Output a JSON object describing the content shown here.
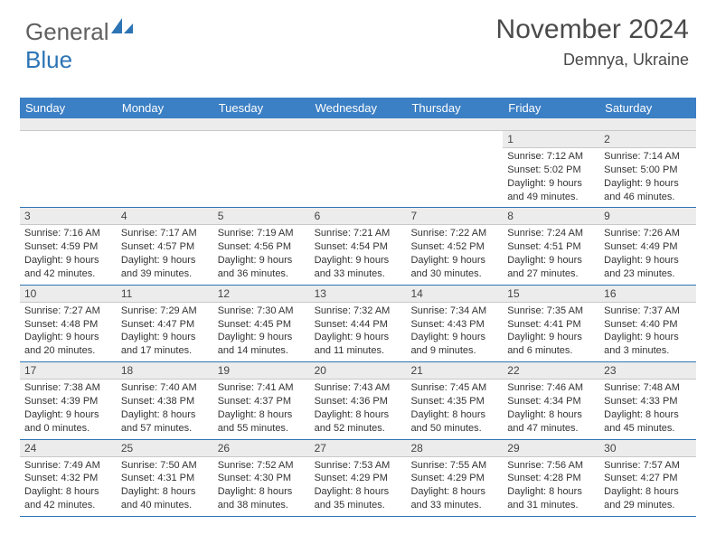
{
  "logo": {
    "general": "General",
    "blue": "Blue"
  },
  "header": {
    "month_title": "November 2024",
    "location": "Demnya, Ukraine"
  },
  "colors": {
    "header_bg": "#3b7fc4",
    "header_text": "#ffffff",
    "day_number_bg": "#ececec",
    "cell_border": "#2d74b5",
    "logo_blue": "#2d74b5",
    "logo_gray": "#606060"
  },
  "weekdays": [
    "Sunday",
    "Monday",
    "Tuesday",
    "Wednesday",
    "Thursday",
    "Friday",
    "Saturday"
  ],
  "weeks": [
    [
      null,
      null,
      null,
      null,
      null,
      {
        "n": "1",
        "sr": "Sunrise: 7:12 AM",
        "ss": "Sunset: 5:02 PM",
        "d1": "Daylight: 9 hours",
        "d2": "and 49 minutes."
      },
      {
        "n": "2",
        "sr": "Sunrise: 7:14 AM",
        "ss": "Sunset: 5:00 PM",
        "d1": "Daylight: 9 hours",
        "d2": "and 46 minutes."
      }
    ],
    [
      {
        "n": "3",
        "sr": "Sunrise: 7:16 AM",
        "ss": "Sunset: 4:59 PM",
        "d1": "Daylight: 9 hours",
        "d2": "and 42 minutes."
      },
      {
        "n": "4",
        "sr": "Sunrise: 7:17 AM",
        "ss": "Sunset: 4:57 PM",
        "d1": "Daylight: 9 hours",
        "d2": "and 39 minutes."
      },
      {
        "n": "5",
        "sr": "Sunrise: 7:19 AM",
        "ss": "Sunset: 4:56 PM",
        "d1": "Daylight: 9 hours",
        "d2": "and 36 minutes."
      },
      {
        "n": "6",
        "sr": "Sunrise: 7:21 AM",
        "ss": "Sunset: 4:54 PM",
        "d1": "Daylight: 9 hours",
        "d2": "and 33 minutes."
      },
      {
        "n": "7",
        "sr": "Sunrise: 7:22 AM",
        "ss": "Sunset: 4:52 PM",
        "d1": "Daylight: 9 hours",
        "d2": "and 30 minutes."
      },
      {
        "n": "8",
        "sr": "Sunrise: 7:24 AM",
        "ss": "Sunset: 4:51 PM",
        "d1": "Daylight: 9 hours",
        "d2": "and 27 minutes."
      },
      {
        "n": "9",
        "sr": "Sunrise: 7:26 AM",
        "ss": "Sunset: 4:49 PM",
        "d1": "Daylight: 9 hours",
        "d2": "and 23 minutes."
      }
    ],
    [
      {
        "n": "10",
        "sr": "Sunrise: 7:27 AM",
        "ss": "Sunset: 4:48 PM",
        "d1": "Daylight: 9 hours",
        "d2": "and 20 minutes."
      },
      {
        "n": "11",
        "sr": "Sunrise: 7:29 AM",
        "ss": "Sunset: 4:47 PM",
        "d1": "Daylight: 9 hours",
        "d2": "and 17 minutes."
      },
      {
        "n": "12",
        "sr": "Sunrise: 7:30 AM",
        "ss": "Sunset: 4:45 PM",
        "d1": "Daylight: 9 hours",
        "d2": "and 14 minutes."
      },
      {
        "n": "13",
        "sr": "Sunrise: 7:32 AM",
        "ss": "Sunset: 4:44 PM",
        "d1": "Daylight: 9 hours",
        "d2": "and 11 minutes."
      },
      {
        "n": "14",
        "sr": "Sunrise: 7:34 AM",
        "ss": "Sunset: 4:43 PM",
        "d1": "Daylight: 9 hours",
        "d2": "and 9 minutes."
      },
      {
        "n": "15",
        "sr": "Sunrise: 7:35 AM",
        "ss": "Sunset: 4:41 PM",
        "d1": "Daylight: 9 hours",
        "d2": "and 6 minutes."
      },
      {
        "n": "16",
        "sr": "Sunrise: 7:37 AM",
        "ss": "Sunset: 4:40 PM",
        "d1": "Daylight: 9 hours",
        "d2": "and 3 minutes."
      }
    ],
    [
      {
        "n": "17",
        "sr": "Sunrise: 7:38 AM",
        "ss": "Sunset: 4:39 PM",
        "d1": "Daylight: 9 hours",
        "d2": "and 0 minutes."
      },
      {
        "n": "18",
        "sr": "Sunrise: 7:40 AM",
        "ss": "Sunset: 4:38 PM",
        "d1": "Daylight: 8 hours",
        "d2": "and 57 minutes."
      },
      {
        "n": "19",
        "sr": "Sunrise: 7:41 AM",
        "ss": "Sunset: 4:37 PM",
        "d1": "Daylight: 8 hours",
        "d2": "and 55 minutes."
      },
      {
        "n": "20",
        "sr": "Sunrise: 7:43 AM",
        "ss": "Sunset: 4:36 PM",
        "d1": "Daylight: 8 hours",
        "d2": "and 52 minutes."
      },
      {
        "n": "21",
        "sr": "Sunrise: 7:45 AM",
        "ss": "Sunset: 4:35 PM",
        "d1": "Daylight: 8 hours",
        "d2": "and 50 minutes."
      },
      {
        "n": "22",
        "sr": "Sunrise: 7:46 AM",
        "ss": "Sunset: 4:34 PM",
        "d1": "Daylight: 8 hours",
        "d2": "and 47 minutes."
      },
      {
        "n": "23",
        "sr": "Sunrise: 7:48 AM",
        "ss": "Sunset: 4:33 PM",
        "d1": "Daylight: 8 hours",
        "d2": "and 45 minutes."
      }
    ],
    [
      {
        "n": "24",
        "sr": "Sunrise: 7:49 AM",
        "ss": "Sunset: 4:32 PM",
        "d1": "Daylight: 8 hours",
        "d2": "and 42 minutes."
      },
      {
        "n": "25",
        "sr": "Sunrise: 7:50 AM",
        "ss": "Sunset: 4:31 PM",
        "d1": "Daylight: 8 hours",
        "d2": "and 40 minutes."
      },
      {
        "n": "26",
        "sr": "Sunrise: 7:52 AM",
        "ss": "Sunset: 4:30 PM",
        "d1": "Daylight: 8 hours",
        "d2": "and 38 minutes."
      },
      {
        "n": "27",
        "sr": "Sunrise: 7:53 AM",
        "ss": "Sunset: 4:29 PM",
        "d1": "Daylight: 8 hours",
        "d2": "and 35 minutes."
      },
      {
        "n": "28",
        "sr": "Sunrise: 7:55 AM",
        "ss": "Sunset: 4:29 PM",
        "d1": "Daylight: 8 hours",
        "d2": "and 33 minutes."
      },
      {
        "n": "29",
        "sr": "Sunrise: 7:56 AM",
        "ss": "Sunset: 4:28 PM",
        "d1": "Daylight: 8 hours",
        "d2": "and 31 minutes."
      },
      {
        "n": "30",
        "sr": "Sunrise: 7:57 AM",
        "ss": "Sunset: 4:27 PM",
        "d1": "Daylight: 8 hours",
        "d2": "and 29 minutes."
      }
    ]
  ]
}
